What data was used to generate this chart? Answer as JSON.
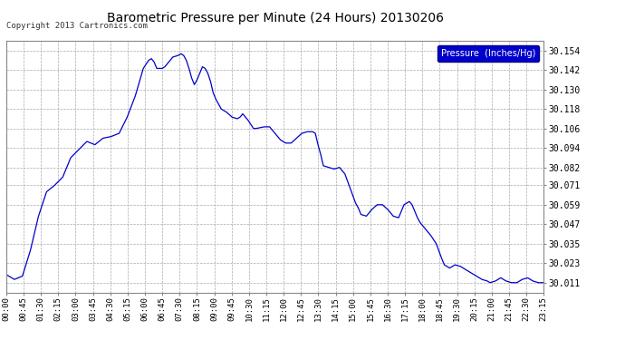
{
  "title": "Barometric Pressure per Minute (24 Hours) 20130206",
  "copyright": "Copyright 2013 Cartronics.com",
  "legend_label": "Pressure  (Inches/Hg)",
  "line_color": "#0000cc",
  "background_color": "#ffffff",
  "grid_color": "#aaaaaa",
  "yticks": [
    30.011,
    30.023,
    30.035,
    30.047,
    30.059,
    30.071,
    30.082,
    30.094,
    30.106,
    30.118,
    30.13,
    30.142,
    30.154
  ],
  "ylim": [
    30.005,
    30.16
  ],
  "xtick_labels": [
    "00:00",
    "00:45",
    "01:30",
    "02:15",
    "03:00",
    "03:45",
    "04:30",
    "05:15",
    "06:00",
    "06:45",
    "07:30",
    "08:15",
    "09:00",
    "09:45",
    "10:30",
    "11:15",
    "12:00",
    "12:45",
    "13:30",
    "14:15",
    "15:00",
    "15:45",
    "16:30",
    "17:15",
    "18:00",
    "18:45",
    "19:30",
    "20:15",
    "21:00",
    "21:45",
    "22:30",
    "23:15"
  ],
  "data_points": [
    [
      0,
      30.016
    ],
    [
      45,
      30.013
    ],
    [
      90,
      30.015
    ],
    [
      135,
      30.031
    ],
    [
      180,
      30.052
    ],
    [
      225,
      30.067
    ],
    [
      270,
      30.071
    ],
    [
      315,
      30.076
    ],
    [
      360,
      30.088
    ],
    [
      405,
      30.093
    ],
    [
      450,
      30.098
    ],
    [
      495,
      30.096
    ],
    [
      540,
      30.1
    ],
    [
      585,
      30.101
    ],
    [
      630,
      30.103
    ],
    [
      675,
      30.113
    ],
    [
      720,
      30.126
    ],
    [
      765,
      30.143
    ],
    [
      795,
      30.148
    ],
    [
      810,
      30.149
    ],
    [
      825,
      30.147
    ],
    [
      840,
      30.143
    ],
    [
      855,
      30.143
    ],
    [
      870,
      30.143
    ],
    [
      885,
      30.144
    ],
    [
      900,
      30.146
    ],
    [
      930,
      30.15
    ],
    [
      960,
      30.151
    ],
    [
      975,
      30.152
    ],
    [
      990,
      30.151
    ],
    [
      1005,
      30.148
    ],
    [
      1020,
      30.143
    ],
    [
      1035,
      30.137
    ],
    [
      1050,
      30.133
    ],
    [
      1065,
      30.136
    ],
    [
      1080,
      30.14
    ],
    [
      1095,
      30.144
    ],
    [
      1110,
      30.143
    ],
    [
      1125,
      30.14
    ],
    [
      1140,
      30.135
    ],
    [
      1155,
      30.128
    ],
    [
      1170,
      30.124
    ],
    [
      1185,
      30.121
    ],
    [
      1200,
      30.118
    ],
    [
      1215,
      30.117
    ],
    [
      1230,
      30.116
    ],
    [
      1260,
      30.113
    ],
    [
      1290,
      30.112
    ],
    [
      1305,
      30.113
    ],
    [
      1320,
      30.115
    ],
    [
      1335,
      30.113
    ],
    [
      1350,
      30.111
    ],
    [
      1380,
      30.106
    ],
    [
      1395,
      30.106
    ],
    [
      1440,
      30.107
    ],
    [
      1470,
      30.107
    ],
    [
      1500,
      30.103
    ],
    [
      1530,
      30.099
    ],
    [
      1560,
      30.097
    ],
    [
      1590,
      30.097
    ],
    [
      1620,
      30.1
    ],
    [
      1650,
      30.103
    ],
    [
      1680,
      30.104
    ],
    [
      1710,
      30.104
    ],
    [
      1725,
      30.103
    ],
    [
      1740,
      30.096
    ],
    [
      1755,
      30.09
    ],
    [
      1770,
      30.083
    ],
    [
      1800,
      30.082
    ],
    [
      1830,
      30.081
    ],
    [
      1860,
      30.082
    ],
    [
      1890,
      30.078
    ],
    [
      1920,
      30.069
    ],
    [
      1950,
      30.06
    ],
    [
      1965,
      30.057
    ],
    [
      1980,
      30.053
    ],
    [
      2010,
      30.052
    ],
    [
      2040,
      30.056
    ],
    [
      2070,
      30.059
    ],
    [
      2100,
      30.059
    ],
    [
      2130,
      30.056
    ],
    [
      2160,
      30.052
    ],
    [
      2190,
      30.051
    ],
    [
      2220,
      30.059
    ],
    [
      2250,
      30.061
    ],
    [
      2265,
      30.059
    ],
    [
      2295,
      30.051
    ],
    [
      2310,
      30.048
    ],
    [
      2340,
      30.044
    ],
    [
      2370,
      30.04
    ],
    [
      2400,
      30.035
    ],
    [
      2430,
      30.026
    ],
    [
      2445,
      30.022
    ],
    [
      2475,
      30.02
    ],
    [
      2505,
      30.022
    ],
    [
      2535,
      30.021
    ],
    [
      2565,
      30.019
    ],
    [
      2595,
      30.017
    ],
    [
      2625,
      30.015
    ],
    [
      2655,
      30.013
    ],
    [
      2685,
      30.012
    ],
    [
      2700,
      30.011
    ],
    [
      2730,
      30.012
    ],
    [
      2760,
      30.014
    ],
    [
      2790,
      30.012
    ],
    [
      2820,
      30.011
    ],
    [
      2850,
      30.011
    ],
    [
      2880,
      30.013
    ],
    [
      2910,
      30.014
    ],
    [
      2940,
      30.012
    ],
    [
      2970,
      30.011
    ],
    [
      3000,
      30.011
    ]
  ]
}
